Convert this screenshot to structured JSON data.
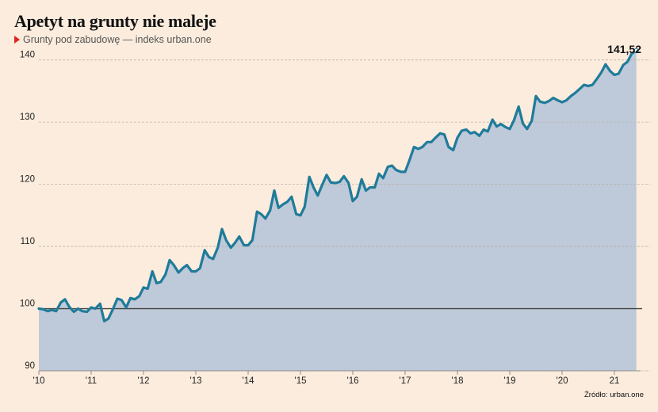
{
  "title": "Apetyt na grunty nie maleje",
  "subtitle": "Grunty pod zabudowę — indeks urban.one",
  "source": "Źródło: urban.one",
  "colors": {
    "background": "#fcecdd",
    "line": "#1f7b9a",
    "area": "#bec9d9",
    "baseline": "#444444",
    "grid": "#b9b3aa",
    "marker": "#e0251b"
  },
  "chart_data": {
    "type": "area",
    "title": "Apetyt na grunty nie maleje",
    "subtitle": "Grunty pod zabudowę — indeks urban.one",
    "xlabel": "",
    "ylabel": "",
    "ylim": [
      90,
      142
    ],
    "yticks": [
      90,
      100,
      110,
      120,
      130,
      140
    ],
    "ytick_labels": [
      "90",
      "100",
      "110",
      "120",
      "130",
      "140"
    ],
    "xticks": [
      2010,
      2011,
      2012,
      2013,
      2014,
      2015,
      2016,
      2017,
      2018,
      2019,
      2020,
      2021
    ],
    "xtick_labels": [
      "'10",
      "'11",
      "'12",
      "'13",
      "'14",
      "'15",
      "'16",
      "'17",
      "'18",
      "'19",
      "'20",
      "21"
    ],
    "xlim": [
      2010,
      2021.5
    ],
    "reference_line": 100,
    "grid": true,
    "last_value_label": "141,52",
    "series": [
      {
        "name": "",
        "x": [
          2010.0,
          2010.08,
          2010.17,
          2010.25,
          2010.33,
          2010.42,
          2010.5,
          2010.58,
          2010.67,
          2010.75,
          2010.83,
          2010.92,
          2011.0,
          2011.08,
          2011.17,
          2011.25,
          2011.33,
          2011.42,
          2011.5,
          2011.58,
          2011.67,
          2011.75,
          2011.83,
          2011.92,
          2012.0,
          2012.08,
          2012.17,
          2012.25,
          2012.33,
          2012.42,
          2012.5,
          2012.58,
          2012.67,
          2012.75,
          2012.83,
          2012.92,
          2013.0,
          2013.08,
          2013.17,
          2013.25,
          2013.33,
          2013.42,
          2013.5,
          2013.58,
          2013.67,
          2013.75,
          2013.83,
          2013.92,
          2014.0,
          2014.08,
          2014.17,
          2014.25,
          2014.33,
          2014.42,
          2014.5,
          2014.58,
          2014.67,
          2014.75,
          2014.83,
          2014.92,
          2015.0,
          2015.08,
          2015.17,
          2015.25,
          2015.33,
          2015.42,
          2015.5,
          2015.58,
          2015.67,
          2015.75,
          2015.83,
          2015.92,
          2016.0,
          2016.08,
          2016.17,
          2016.25,
          2016.33,
          2016.42,
          2016.5,
          2016.58,
          2016.67,
          2016.75,
          2016.83,
          2016.92,
          2017.0,
          2017.08,
          2017.17,
          2017.25,
          2017.33,
          2017.42,
          2017.5,
          2017.58,
          2017.67,
          2017.75,
          2017.83,
          2017.92,
          2018.0,
          2018.08,
          2018.17,
          2018.25,
          2018.33,
          2018.42,
          2018.5,
          2018.58,
          2018.67,
          2018.75,
          2018.83,
          2018.92,
          2019.0,
          2019.08,
          2019.17,
          2019.25,
          2019.33,
          2019.42,
          2019.5,
          2019.58,
          2019.67,
          2019.75,
          2019.83,
          2019.92,
          2020.0,
          2020.08,
          2020.17,
          2020.25,
          2020.33,
          2020.42,
          2020.5,
          2020.58,
          2020.67,
          2020.75,
          2020.83,
          2020.92,
          2021.0,
          2021.08,
          2021.17,
          2021.25,
          2021.33,
          2021.42
        ],
        "values": [
          100.0,
          99.9,
          99.6,
          99.8,
          99.6,
          101.0,
          101.5,
          100.3,
          99.5,
          100.0,
          99.6,
          99.5,
          100.2,
          100.0,
          100.8,
          98.0,
          98.4,
          100.0,
          101.6,
          101.4,
          100.2,
          101.7,
          101.5,
          102.0,
          103.4,
          103.2,
          106.0,
          104.1,
          104.3,
          105.5,
          107.8,
          107.0,
          105.8,
          106.5,
          107.0,
          106.0,
          106.0,
          106.5,
          109.4,
          108.3,
          108.0,
          109.8,
          112.8,
          111.0,
          109.8,
          110.6,
          111.6,
          110.2,
          110.2,
          111.0,
          115.6,
          115.2,
          114.5,
          115.8,
          119.0,
          116.2,
          116.8,
          117.2,
          118.0,
          115.2,
          115.0,
          116.4,
          121.2,
          119.5,
          118.2,
          120.0,
          121.5,
          120.3,
          120.2,
          120.4,
          121.3,
          120.2,
          117.3,
          118.0,
          120.8,
          119.0,
          119.5,
          119.5,
          121.7,
          121.0,
          122.8,
          123.0,
          122.3,
          122.0,
          122.0,
          123.8,
          126.0,
          125.7,
          126.0,
          126.8,
          126.8,
          127.5,
          128.2,
          128.0,
          126.0,
          125.5,
          127.5,
          128.6,
          128.8,
          128.2,
          128.4,
          127.8,
          128.8,
          128.5,
          130.4,
          129.3,
          129.7,
          129.2,
          128.9,
          130.3,
          132.5,
          129.8,
          128.9,
          130.2,
          134.2,
          133.3,
          133.1,
          133.4,
          133.9,
          133.5,
          133.2,
          133.5,
          134.2,
          134.7,
          135.3,
          136.0,
          135.8,
          136.0,
          137.0,
          138.0,
          139.3,
          138.2,
          137.6,
          137.8,
          139.2,
          139.7,
          141.0,
          141.52
        ]
      }
    ]
  }
}
